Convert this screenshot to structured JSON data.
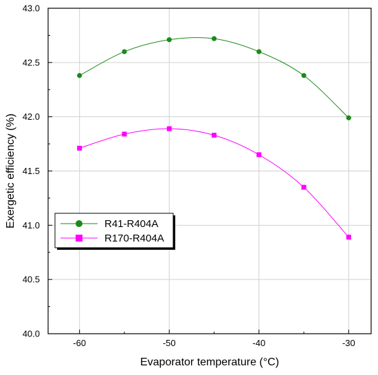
{
  "chart_data": {
    "type": "line",
    "xlabel": "Evaporator temperature (°C)",
    "ylabel": "Exergetic efficiency (%)",
    "xlim": [
      -63.5,
      -27.5
    ],
    "ylim": [
      40.0,
      43.0
    ],
    "xticks": [
      -60,
      -50,
      -40,
      -30
    ],
    "xtick_labels": [
      "-60",
      "-50",
      "-40",
      "-30"
    ],
    "yticks": [
      40.0,
      40.5,
      41.0,
      41.5,
      42.0,
      42.5,
      43.0
    ],
    "ytick_labels": [
      "40.0",
      "40.5",
      "41.0",
      "41.5",
      "42.0",
      "42.5",
      "43.0"
    ],
    "grid": true,
    "legend_position": "lower-left",
    "x": [
      -60,
      -55,
      -50,
      -45,
      -40,
      -35,
      -30
    ],
    "series": [
      {
        "name": "R41-R404A",
        "values": [
          42.38,
          42.6,
          42.71,
          42.72,
          42.6,
          42.38,
          41.99
        ],
        "color": "#1a8a1a",
        "marker": "circle"
      },
      {
        "name": "R170-R404A",
        "values": [
          41.71,
          41.84,
          41.89,
          41.83,
          41.65,
          41.35,
          40.89
        ],
        "color": "#ff00ff",
        "marker": "square"
      }
    ]
  }
}
